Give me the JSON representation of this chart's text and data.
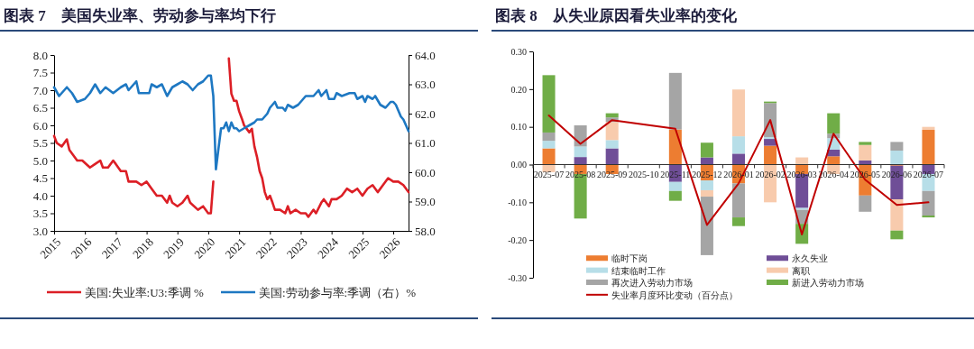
{
  "chart_data": [
    {
      "type": "line",
      "title": "图表 7　美国失业率、劳动参与率均下行",
      "xlim": [
        "2015-01",
        "2026-07"
      ],
      "xticks": [
        {
          "value": "2015",
          "label": "2015"
        },
        {
          "value": "2016",
          "label": "2016"
        },
        {
          "value": "2017",
          "label": "2017"
        },
        {
          "value": "2018",
          "label": "2018"
        },
        {
          "value": "2019",
          "label": "2019"
        },
        {
          "value": "2020",
          "label": "2020"
        },
        {
          "value": "2021",
          "label": "2021"
        },
        {
          "value": "2022",
          "label": "2022"
        },
        {
          "value": "2023",
          "label": "2023"
        },
        {
          "value": "2024",
          "label": "2024"
        },
        {
          "value": "2025",
          "label": "2025"
        },
        {
          "value": "2026",
          "label": "2026"
        }
      ],
      "ylim": [
        3,
        8
      ],
      "yticks": [
        {
          "value": 3,
          "label": "3.0"
        },
        {
          "value": 3.5,
          "label": "3.5"
        },
        {
          "value": 4,
          "label": "4.0"
        },
        {
          "value": 4.5,
          "label": "4.5"
        },
        {
          "value": 5,
          "label": "5.0"
        },
        {
          "value": 5.5,
          "label": "5.5"
        },
        {
          "value": 6,
          "label": "6.0"
        },
        {
          "value": 6.5,
          "label": "6.5"
        },
        {
          "value": 7,
          "label": "7.0"
        },
        {
          "value": 7.5,
          "label": "7.5"
        },
        {
          "value": 8,
          "label": "8.0"
        }
      ],
      "y2lim": [
        58,
        64
      ],
      "y2ticks": [
        {
          "value": 58,
          "label": "58.0"
        },
        {
          "value": 59,
          "label": "59.0"
        },
        {
          "value": 60,
          "label": "60.0"
        },
        {
          "value": 61,
          "label": "61.0"
        },
        {
          "value": 62,
          "label": "62.0"
        },
        {
          "value": 63,
          "label": "63.0"
        },
        {
          "value": 64,
          "label": "64.0"
        }
      ],
      "legend": "bottom",
      "series": [
        {
          "name": "美国:失业率:U3:季调 %",
          "color": "#dc1f26",
          "x": [
            "2015-01",
            "2015-02",
            "2015-04",
            "2015-06",
            "2015-07",
            "2015-10",
            "2015-12",
            "2016-03",
            "2016-05",
            "2016-07",
            "2016-08",
            "2016-10",
            "2016-12",
            "2017-01",
            "2017-03",
            "2017-05",
            "2017-06",
            "2017-09",
            "2017-11",
            "2018-01",
            "2018-03",
            "2018-05",
            "2018-07",
            "2018-09",
            "2018-10",
            "2018-11",
            "2019-01",
            "2019-03",
            "2019-05",
            "2019-06",
            "2019-09",
            "2019-11",
            "2020-01",
            "2020-02",
            "2020-03",
            "2020-04",
            "2020-09",
            "2020-10",
            "2020-11",
            "2020-12",
            "2021-01",
            "2021-02",
            "2021-03",
            "2021-04",
            "2021-05",
            "2021-06",
            "2021-07",
            "2021-08",
            "2021-09",
            "2021-10",
            "2021-11",
            "2021-12",
            "2022-01",
            "2022-02",
            "2022-03",
            "2022-05",
            "2022-07",
            "2022-08",
            "2022-09",
            "2022-11",
            "2023-01",
            "2023-03",
            "2023-04",
            "2023-06",
            "2023-07",
            "2023-09",
            "2023-10",
            "2023-12",
            "2024-01",
            "2024-03",
            "2024-05",
            "2024-07",
            "2024-09",
            "2024-11",
            "2025-01",
            "2025-03",
            "2025-05",
            "2025-07",
            "2025-09",
            "2025-11",
            "2026-01",
            "2026-03",
            "2026-05",
            "2026-07"
          ],
          "values": [
            5.7,
            5.5,
            5.4,
            5.6,
            5.3,
            5.0,
            5.0,
            4.8,
            4.9,
            5.0,
            4.8,
            4.8,
            5.0,
            4.9,
            4.7,
            4.7,
            4.4,
            4.4,
            4.3,
            4.4,
            4.2,
            4.0,
            4.0,
            3.8,
            4.0,
            3.8,
            3.7,
            3.8,
            4.0,
            3.8,
            3.6,
            3.7,
            3.5,
            3.5,
            4.4,
            null,
            7.9,
            6.9,
            6.7,
            6.7,
            6.4,
            6.2,
            6.0,
            5.9,
            5.8,
            5.9,
            5.4,
            5.1,
            4.7,
            4.5,
            4.1,
            3.9,
            4.0,
            3.8,
            3.6,
            3.6,
            3.5,
            3.7,
            3.5,
            3.6,
            3.5,
            3.5,
            3.4,
            3.6,
            3.5,
            3.8,
            3.9,
            3.7,
            3.9,
            3.9,
            4.0,
            4.2,
            4.1,
            4.2,
            4.0,
            4.2,
            4.3,
            4.1,
            4.3,
            4.5,
            4.4,
            4.4,
            4.3,
            4.1
          ]
        },
        {
          "name": "美国:劳动参与率:季调（右）%",
          "color": "#1e78c2",
          "axis": "y2",
          "x": [
            "2015-01",
            "2015-03",
            "2015-06",
            "2015-08",
            "2015-10",
            "2016-01",
            "2016-03",
            "2016-05",
            "2016-07",
            "2016-09",
            "2016-12",
            "2017-03",
            "2017-05",
            "2017-06",
            "2017-09",
            "2017-10",
            "2018-02",
            "2018-03",
            "2018-05",
            "2018-07",
            "2018-09",
            "2018-11",
            "2019-01",
            "2019-03",
            "2019-05",
            "2019-07",
            "2019-09",
            "2019-11",
            "2019-12",
            "2020-01",
            "2020-02",
            "2020-03",
            "2020-04",
            "2020-05",
            "2020-06",
            "2020-07",
            "2020-08",
            "2020-09",
            "2020-10",
            "2020-11",
            "2020-12",
            "2021-01",
            "2021-03",
            "2021-05",
            "2021-07",
            "2021-08",
            "2021-10",
            "2021-12",
            "2022-01",
            "2022-03",
            "2022-04",
            "2022-06",
            "2022-07",
            "2022-08",
            "2022-10",
            "2022-12",
            "2023-03",
            "2023-06",
            "2023-08",
            "2023-09",
            "2023-11",
            "2023-12",
            "2024-02",
            "2024-03",
            "2024-05",
            "2024-08",
            "2024-10",
            "2024-11",
            "2025-01",
            "2025-02",
            "2025-03",
            "2025-05",
            "2025-06",
            "2025-08",
            "2025-10",
            "2025-12",
            "2026-01",
            "2026-02",
            "2026-04",
            "2026-05",
            "2026-06",
            "2026-07"
          ],
          "values": [
            62.9,
            62.6,
            62.9,
            62.7,
            62.4,
            62.5,
            62.7,
            63.0,
            62.7,
            62.9,
            62.7,
            62.9,
            63.0,
            62.8,
            63.1,
            62.7,
            62.7,
            63.0,
            62.9,
            63.0,
            62.6,
            62.9,
            63.0,
            63.1,
            63.0,
            62.8,
            63.0,
            63.1,
            63.2,
            63.3,
            63.3,
            62.6,
            60.1,
            60.8,
            61.5,
            61.5,
            61.7,
            61.4,
            61.7,
            61.5,
            61.5,
            61.4,
            61.5,
            61.6,
            61.7,
            61.8,
            61.8,
            62.0,
            62.2,
            62.4,
            62.2,
            62.2,
            62.1,
            62.3,
            62.2,
            62.3,
            62.6,
            62.6,
            62.8,
            62.6,
            62.8,
            62.5,
            62.5,
            62.7,
            62.6,
            62.7,
            62.7,
            62.5,
            62.6,
            62.4,
            62.6,
            62.5,
            62.6,
            62.3,
            62.2,
            62.4,
            62.4,
            62.3,
            61.9,
            61.8,
            61.6,
            61.4
          ]
        }
      ]
    },
    {
      "type": "bar",
      "title": "图表 8　从失业原因看失业率的变化",
      "stacked": true,
      "legend": "bottom",
      "categories": [
        "2025-07",
        "2025-08",
        "2025-09",
        "2025-10",
        "2025-11",
        "2025-12",
        "2026-01",
        "2026-02",
        "2026-03",
        "2026-04",
        "2026-05",
        "2026-06",
        "2026-07"
      ],
      "ylim": [
        -0.3,
        0.3
      ],
      "yticks": [
        {
          "value": -0.3,
          "label": "-0.30"
        },
        {
          "value": -0.2,
          "label": "-0.20"
        },
        {
          "value": -0.1,
          "label": "-0.10"
        },
        {
          "value": 0,
          "label": "0.00"
        },
        {
          "value": 0.1,
          "label": "0.10"
        },
        {
          "value": 0.2,
          "label": "0.20"
        },
        {
          "value": 0.3,
          "label": "0.30"
        }
      ],
      "series": [
        {
          "name": "临时下岗",
          "color": "#ed7d31",
          "values": [
            0.043,
            -0.025,
            -0.025,
            null,
            0.093,
            -0.042,
            -0.05,
            0.05,
            -0.025,
            0.022,
            -0.082,
            -0.003,
            0.092
          ]
        },
        {
          "name": "永久失业",
          "color": "#6f4e97",
          "values": [
            0,
            0.02,
            0.043,
            null,
            -0.046,
            0.019,
            0.029,
            0.018,
            -0.09,
            0.018,
            0.011,
            -0.089,
            -0.025
          ]
        },
        {
          "name": "结束临时工作",
          "color": "#b7dee8",
          "values": [
            0.02,
            0.028,
            0.022,
            null,
            -0.024,
            -0.026,
            0.046,
            0.005,
            -0.005,
            0.03,
            null,
            0.037,
            -0.045
          ]
        },
        {
          "name": "离职",
          "color": "#f8cbad",
          "values": [
            -0.02,
            0,
            0.048,
            null,
            0,
            -0.017,
            0.124,
            -0.1,
            0.019,
            -0.025,
            0.041,
            -0.083,
            0.008
          ]
        },
        {
          "name": "再次进入劳动力市场",
          "color": "#a5a5a5",
          "values": [
            0.022,
            0.056,
            0.012,
            null,
            0.15,
            -0.155,
            -0.09,
            0.09,
            -0.037,
            0.012,
            -0.043,
            0.023,
            -0.065
          ]
        },
        {
          "name": "新进入劳动力市场",
          "color": "#70ad47",
          "values": [
            0.152,
            -0.118,
            0.011,
            null,
            -0.026,
            0.039,
            -0.023,
            0.004,
            -0.053,
            0.054,
            0.008,
            -0.023,
            -0.005
          ]
        },
        {
          "name": "失业率月度环比变动（百分点）",
          "type": "line",
          "color": "#c00000",
          "values": [
            0.13,
            0.055,
            0.118,
            null,
            0.095,
            -0.16,
            -0.05,
            0.118,
            -0.185,
            0.082,
            -0.04,
            -0.107,
            -0.1
          ]
        }
      ]
    }
  ]
}
